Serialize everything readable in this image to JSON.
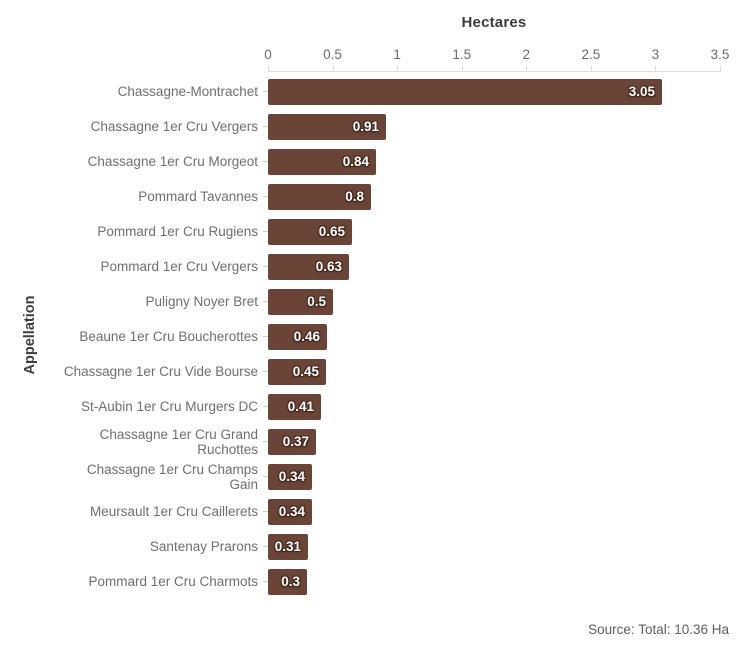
{
  "chart_data": {
    "type": "bar",
    "orientation": "horizontal",
    "title": "Hectares",
    "xlabel": "Hectares",
    "ylabel": "Appellation",
    "xlim": [
      0,
      3.5
    ],
    "x_ticks": [
      "0",
      "0.5",
      "1",
      "1.5",
      "2",
      "2.5",
      "3",
      "3.5"
    ],
    "grid": false,
    "legend": false,
    "categories": [
      "Chassagne-Montrachet",
      "Chassagne 1er Cru Vergers",
      "Chassagne 1er Cru Morgeot",
      "Pommard Tavannes",
      "Pommard 1er Cru Rugiens",
      "Pommard 1er Cru Vergers",
      "Puligny Noyer Bret",
      "Beaune 1er Cru Boucherottes",
      "Chassagne 1er Cru Vide Bourse",
      "St-Aubin 1er Cru Murgers DC",
      "Chassagne 1er Cru Grand Ruchottes",
      "Chassagne 1er Cru Champs Gain",
      "Meursault 1er Cru Caillerets",
      "Santenay Prarons",
      "Pommard 1er Cru Charmots"
    ],
    "display_labels": [
      "Chassagne-Montrachet",
      "Chassagne 1er Cru Vergers",
      "Chassagne 1er Cru Morgeot",
      "Pommard Tavannes",
      "Pommard 1er Cru Rugiens",
      "Pommard 1er Cru Vergers",
      "Puligny Noyer Bret",
      "Beaune 1er Cru Boucherottes",
      "Chassagne 1er Cru Vide Bourse",
      "St-Aubin 1er Cru Murgers DC",
      "Chassagne 1er Cru Grand\nRuchottes",
      "Chassagne 1er Cru Champs\nGain",
      "Meursault 1er Cru Caillerets",
      "Santenay Prarons",
      "Pommard 1er Cru Charmots"
    ],
    "values": [
      3.05,
      0.91,
      0.84,
      0.8,
      0.65,
      0.63,
      0.5,
      0.46,
      0.45,
      0.41,
      0.37,
      0.34,
      0.34,
      0.31,
      0.3
    ],
    "value_labels": [
      "3.05",
      "0.91",
      "0.84",
      "0.8",
      "0.65",
      "0.63",
      "0.5",
      "0.46",
      "0.45",
      "0.41",
      "0.37",
      "0.34",
      "0.34",
      "0.31",
      "0.3"
    ],
    "source_note": "Source: Total: 10.36 Ha",
    "colors": {
      "bar": "#694437",
      "value_label": "#ffffff",
      "value_label_halo": "#45281d",
      "axis_line": "#dedede",
      "tick_text": "#6b6b6b",
      "category_text": "#6f6f6f",
      "title_text": "#3d3d3d"
    }
  }
}
